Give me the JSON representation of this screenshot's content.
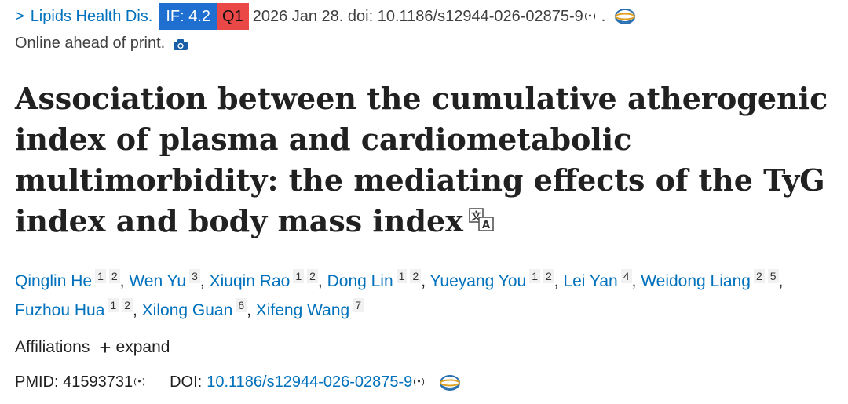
{
  "header": {
    "chevron": ">",
    "journal": "Lipids Health Dis.",
    "impact_factor": "IF: 4.2",
    "quartile": "Q1",
    "citation": "2026 Jan 28. doi: 10.1186/s12944-026-02875-9",
    "period": ".",
    "status": "Online ahead of print."
  },
  "title": "Association between the cumulative atherogenic index of plasma and cardiometabolic multimorbidity: the mediating effects of the TyG index and body mass index",
  "authors": [
    {
      "name": "Qinglin He",
      "aff": [
        "1",
        "2"
      ]
    },
    {
      "name": "Wen Yu",
      "aff": [
        "3"
      ]
    },
    {
      "name": "Xiuqin Rao",
      "aff": [
        "1",
        "2"
      ]
    },
    {
      "name": "Dong Lin",
      "aff": [
        "1",
        "2"
      ]
    },
    {
      "name": "Yueyang You",
      "aff": [
        "1",
        "2"
      ]
    },
    {
      "name": "Lei Yan",
      "aff": [
        "4"
      ]
    },
    {
      "name": "Weidong Liang",
      "aff": [
        "2",
        "5"
      ]
    },
    {
      "name": "Fuzhou Hua",
      "aff": [
        "1",
        "2"
      ]
    },
    {
      "name": "Xilong Guan",
      "aff": [
        "6"
      ]
    },
    {
      "name": "Xifeng Wang",
      "aff": [
        "7"
      ]
    }
  ],
  "affiliations": {
    "label": "Affiliations",
    "expand_label": "expand"
  },
  "ids": {
    "pmid_label": "PMID:",
    "pmid": "41593731",
    "doi_label": "DOI:",
    "doi": "10.1186/s12944-026-02875-9"
  },
  "colors": {
    "link": "#0071bc",
    "if_badge": "#1f6fd1",
    "q1_badge": "#ea4747"
  },
  "icons": [
    "chevron-right-icon",
    "signal-icon",
    "globe-icon",
    "camera-icon",
    "translate-icon",
    "plus-icon"
  ]
}
